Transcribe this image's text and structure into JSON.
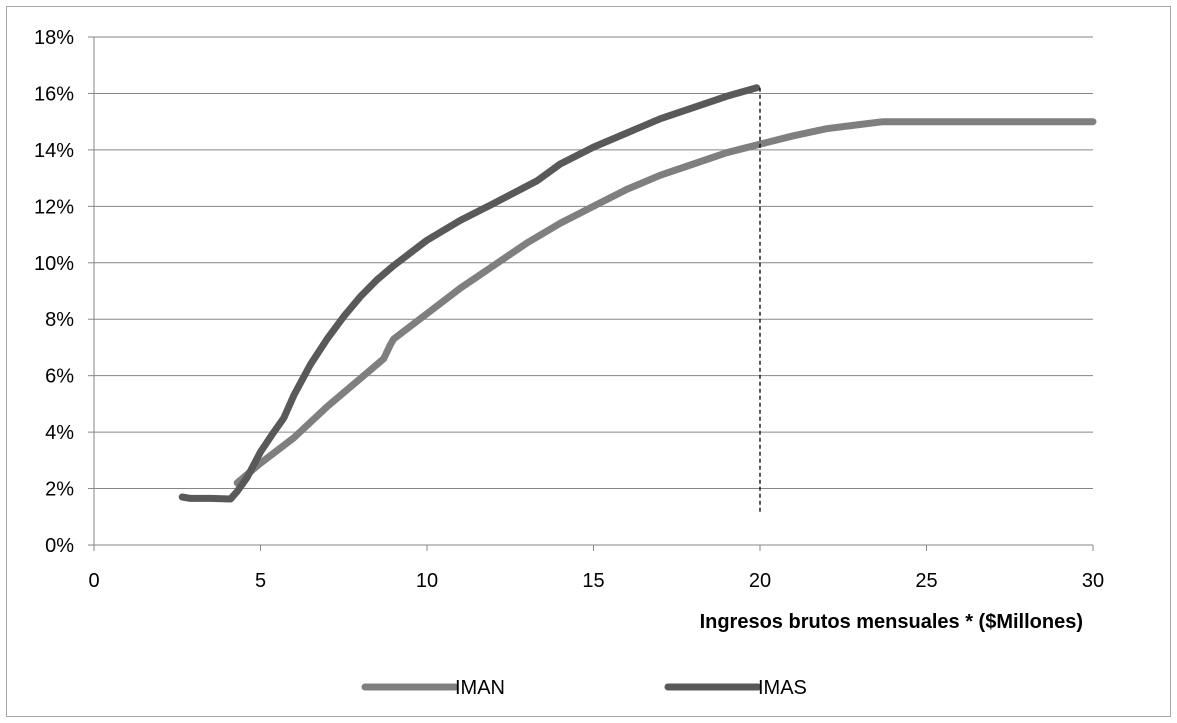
{
  "chart_data": {
    "type": "line",
    "title": "",
    "xlabel": "Ingresos brutos mensuales * ($Millones)",
    "ylabel": "",
    "xlim": [
      0,
      30
    ],
    "ylim": [
      0,
      18
    ],
    "x_ticks": [
      0,
      5,
      10,
      15,
      20,
      25,
      30
    ],
    "y_ticks": [
      0,
      2,
      4,
      6,
      8,
      10,
      12,
      14,
      16,
      18
    ],
    "y_tick_labels": [
      "0%",
      "2%",
      "4%",
      "6%",
      "8%",
      "10%",
      "12%",
      "14%",
      "16%",
      "18%"
    ],
    "grid": "horizontal",
    "legend_position": "bottom",
    "reference_line": {
      "x": 20,
      "style": "dashed",
      "y_from": 1.1,
      "y_to": 16.2
    },
    "series": [
      {
        "name": "IMAN",
        "color": "#7f7f7f",
        "points": [
          [
            4.3,
            2.2
          ],
          [
            5.0,
            2.9
          ],
          [
            6.0,
            3.8
          ],
          [
            7.0,
            4.9
          ],
          [
            8.0,
            5.9
          ],
          [
            8.7,
            6.6
          ],
          [
            8.9,
            7.1
          ],
          [
            9.0,
            7.3
          ],
          [
            10.0,
            8.2
          ],
          [
            11.0,
            9.1
          ],
          [
            12.0,
            9.9
          ],
          [
            13.0,
            10.7
          ],
          [
            14.0,
            11.4
          ],
          [
            15.0,
            12.0
          ],
          [
            16.0,
            12.6
          ],
          [
            17.0,
            13.1
          ],
          [
            18.0,
            13.5
          ],
          [
            19.0,
            13.9
          ],
          [
            20.0,
            14.2
          ],
          [
            21.0,
            14.5
          ],
          [
            22.0,
            14.75
          ],
          [
            23.0,
            14.9
          ],
          [
            23.7,
            15.0
          ],
          [
            25.0,
            15.0
          ],
          [
            30.0,
            15.0
          ]
        ]
      },
      {
        "name": "IMAS",
        "color": "#595959",
        "points": [
          [
            2.65,
            1.7
          ],
          [
            2.9,
            1.65
          ],
          [
            3.5,
            1.65
          ],
          [
            4.1,
            1.63
          ],
          [
            4.3,
            1.9
          ],
          [
            4.6,
            2.4
          ],
          [
            5.0,
            3.3
          ],
          [
            5.4,
            4.0
          ],
          [
            5.7,
            4.5
          ],
          [
            6.0,
            5.3
          ],
          [
            6.5,
            6.4
          ],
          [
            7.0,
            7.3
          ],
          [
            7.5,
            8.1
          ],
          [
            8.0,
            8.8
          ],
          [
            8.5,
            9.4
          ],
          [
            9.0,
            9.9
          ],
          [
            10.0,
            10.8
          ],
          [
            11.0,
            11.5
          ],
          [
            12.0,
            12.1
          ],
          [
            13.3,
            12.9
          ],
          [
            14.0,
            13.5
          ],
          [
            15.0,
            14.1
          ],
          [
            16.0,
            14.6
          ],
          [
            17.0,
            15.1
          ],
          [
            18.0,
            15.5
          ],
          [
            19.0,
            15.9
          ],
          [
            19.9,
            16.2
          ]
        ]
      }
    ]
  }
}
